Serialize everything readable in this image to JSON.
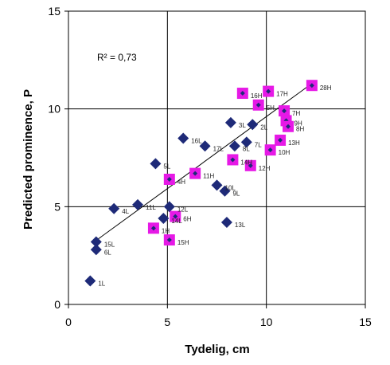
{
  "chart_data": {
    "type": "scatter",
    "xlabel": "Tydelig, cm",
    "ylabel": "Predicted prominence, P",
    "xlim": [
      0,
      15
    ],
    "ylim": [
      0,
      15
    ],
    "xticks": [
      0,
      5,
      10,
      15
    ],
    "yticks": [
      0,
      5,
      10,
      15
    ],
    "grid": true,
    "annotation": "R² = 0,73",
    "colors": {
      "L_marker": "#1e2a78",
      "H_marker_fill": "#e619e6",
      "H_marker_dot": "#1e2a78",
      "trendline": "#000000",
      "grid": "#000000"
    },
    "trendline": {
      "x": [
        1.3,
        12.3
      ],
      "y": [
        3.2,
        11.3
      ]
    },
    "series": [
      {
        "marker": "diamond",
        "points": [
          {
            "label": "1L",
            "x": 1.1,
            "y": 1.2
          },
          {
            "label": "15L",
            "x": 1.4,
            "y": 3.2
          },
          {
            "label": "6L",
            "x": 1.4,
            "y": 2.8
          },
          {
            "label": "4L",
            "x": 2.3,
            "y": 4.9
          },
          {
            "label": "11L",
            "x": 3.5,
            "y": 5.1
          },
          {
            "label": "5L",
            "x": 4.4,
            "y": 7.2
          },
          {
            "label": "14L",
            "x": 4.8,
            "y": 4.4
          },
          {
            "label": "12L",
            "x": 5.1,
            "y": 5.0
          },
          {
            "label": "16L",
            "x": 5.8,
            "y": 8.5
          },
          {
            "label": "17L",
            "x": 6.9,
            "y": 8.1
          },
          {
            "label": "10L",
            "x": 7.5,
            "y": 6.1
          },
          {
            "label": "9L",
            "x": 7.9,
            "y": 5.8
          },
          {
            "label": "13L",
            "x": 8.0,
            "y": 4.2
          },
          {
            "label": "3L",
            "x": 8.2,
            "y": 9.3
          },
          {
            "label": "8L",
            "x": 8.4,
            "y": 8.1
          },
          {
            "label": "7L",
            "x": 9.0,
            "y": 8.3
          },
          {
            "label": "2L",
            "x": 9.3,
            "y": 9.2
          }
        ]
      },
      {
        "marker": "square",
        "points": [
          {
            "label": "1H",
            "x": 4.3,
            "y": 3.9
          },
          {
            "label": "15H",
            "x": 5.1,
            "y": 3.3
          },
          {
            "label": "6H",
            "x": 5.4,
            "y": 4.5
          },
          {
            "label": "4H",
            "x": 5.1,
            "y": 6.4
          },
          {
            "label": "11H",
            "x": 6.4,
            "y": 6.7
          },
          {
            "label": "14H",
            "x": 8.3,
            "y": 7.4
          },
          {
            "label": "12H",
            "x": 9.2,
            "y": 7.1
          },
          {
            "label": "16H",
            "x": 8.8,
            "y": 10.8
          },
          {
            "label": "5H",
            "x": 9.6,
            "y": 10.2
          },
          {
            "label": "17H",
            "x": 10.1,
            "y": 10.9
          },
          {
            "label": "10H",
            "x": 10.2,
            "y": 7.9
          },
          {
            "label": "13H",
            "x": 10.7,
            "y": 8.4
          },
          {
            "label": "7H",
            "x": 10.9,
            "y": 9.9
          },
          {
            "label": "9H",
            "x": 11.0,
            "y": 9.4
          },
          {
            "label": "8H",
            "x": 11.1,
            "y": 9.1
          },
          {
            "label": "28H",
            "x": 12.3,
            "y": 11.2
          }
        ]
      }
    ]
  }
}
